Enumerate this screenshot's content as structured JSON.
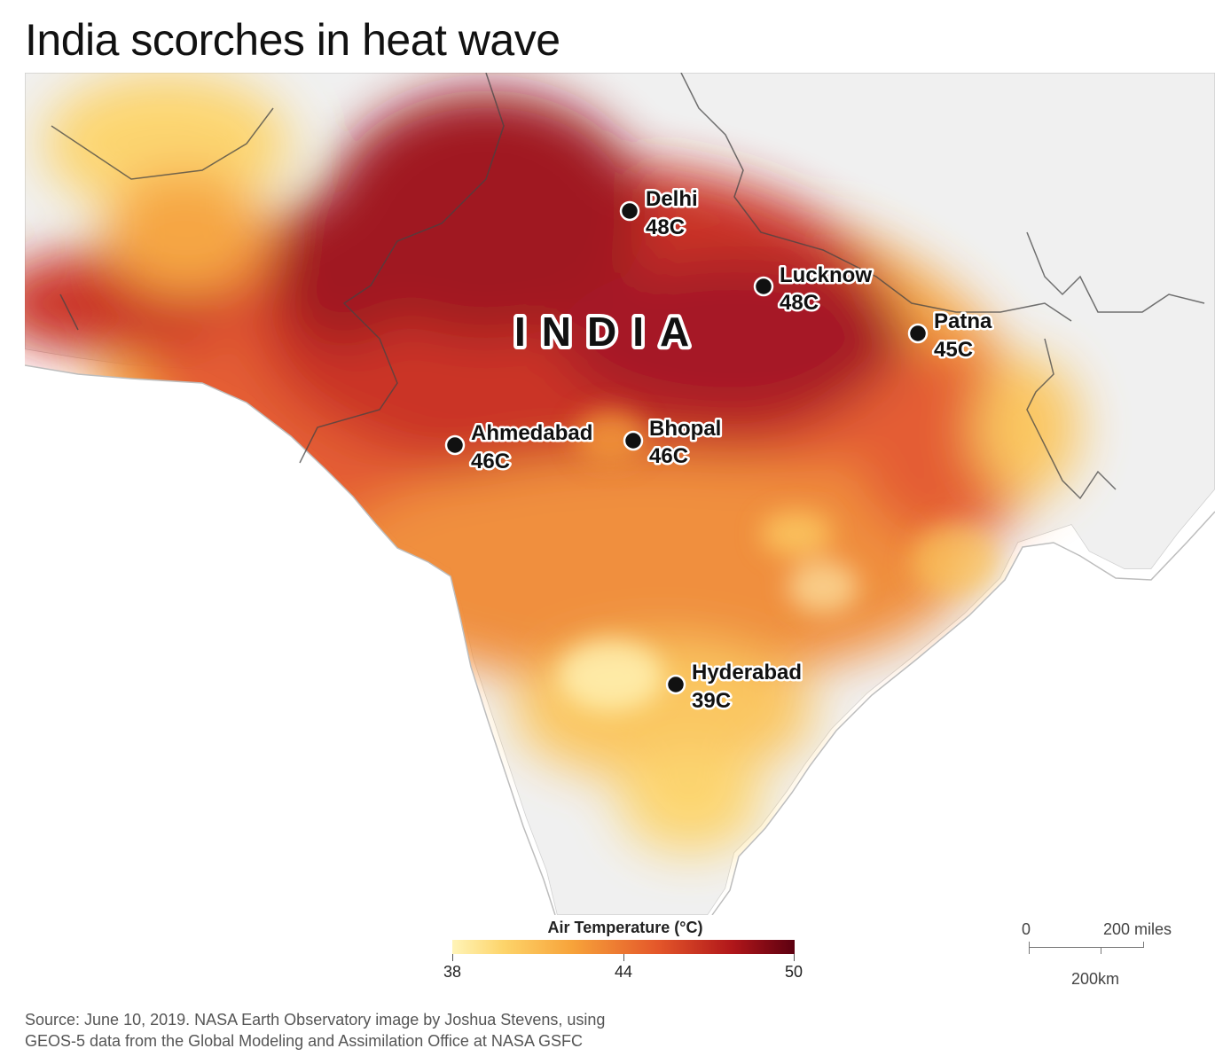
{
  "title": "India scorches in heat wave",
  "country_label": "INDIA",
  "cities": [
    {
      "name": "Delhi",
      "temp": "48C"
    },
    {
      "name": "Lucknow",
      "temp": "48C"
    },
    {
      "name": "Patna",
      "temp": "45C"
    },
    {
      "name": "Ahmedabad",
      "temp": "46C"
    },
    {
      "name": "Bhopal",
      "temp": "46C"
    },
    {
      "name": "Hyderabad",
      "temp": "39C"
    }
  ],
  "legend": {
    "title": "Air Temperature (°C)",
    "min_label": "38",
    "mid_label": "44",
    "max_label": "50",
    "colors": [
      "#fff4b8",
      "#fdd46a",
      "#f7a33a",
      "#e4572a",
      "#b0161a",
      "#5c0010"
    ]
  },
  "scale": {
    "zero": "0",
    "miles": "200 miles",
    "km": "200km"
  },
  "source": {
    "line1": "Source: June 10, 2019. NASA Earth Observatory image by Joshua Stevens, using",
    "line2": "GEOS-5 data from the Global Modeling and Assimilation Office at NASA GSFC"
  }
}
